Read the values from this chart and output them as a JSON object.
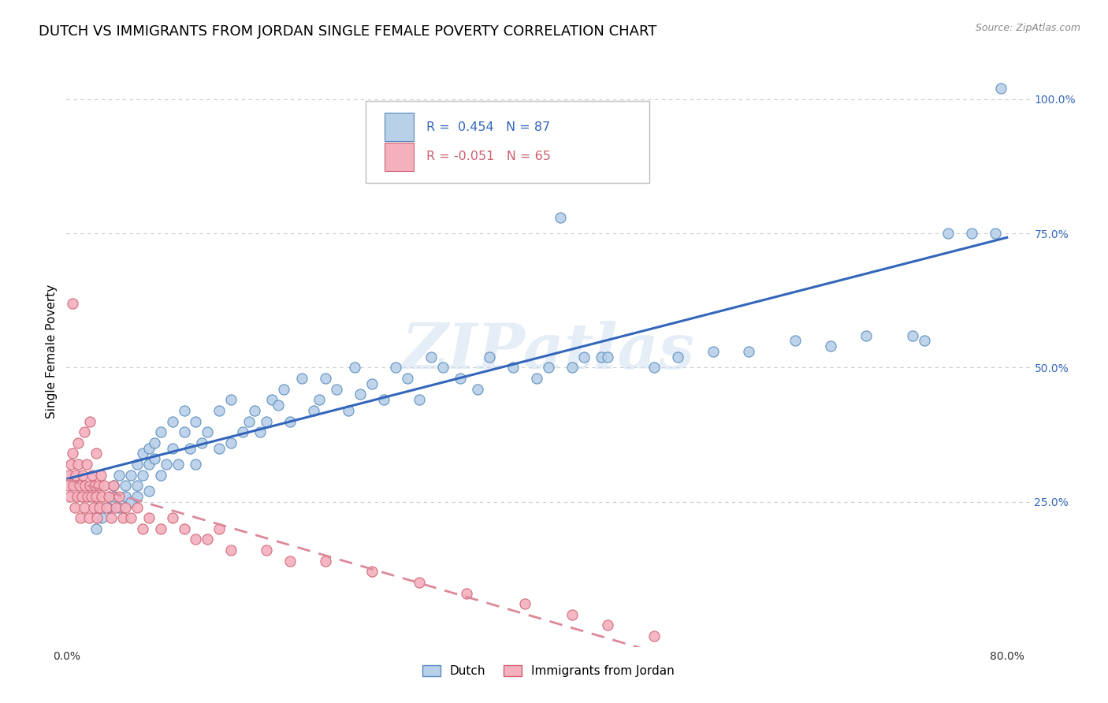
{
  "title": "DUTCH VS IMMIGRANTS FROM JORDAN SINGLE FEMALE POVERTY CORRELATION CHART",
  "source": "Source: ZipAtlas.com",
  "ylabel": "Single Female Poverty",
  "xlim": [
    0.0,
    0.82
  ],
  "ylim": [
    -0.02,
    1.08
  ],
  "xticks": [
    0.0,
    0.2,
    0.4,
    0.6,
    0.8
  ],
  "xticklabels": [
    "0.0%",
    "",
    "",
    "",
    "80.0%"
  ],
  "yticks": [
    0.0,
    0.25,
    0.5,
    0.75,
    1.0
  ],
  "yticklabels": [
    "",
    "25.0%",
    "50.0%",
    "75.0%",
    "100.0%"
  ],
  "dutch_R": 0.454,
  "dutch_N": 87,
  "jordan_R": -0.051,
  "jordan_N": 65,
  "dutch_color": "#b8d0e8",
  "dutch_edge_color": "#5588bb",
  "jordan_color": "#f5b0be",
  "jordan_edge_color": "#cc6070",
  "dutch_trend_color": "#3366bb",
  "jordan_trend_color": "#dd8898",
  "background_color": "#ffffff",
  "watermark": "ZIPatlas",
  "grid_color": "#cccccc",
  "title_fontsize": 13,
  "axis_label_fontsize": 11,
  "tick_fontsize": 10,
  "legend_fontsize": 11,
  "dutch_x": [
    0.025,
    0.03,
    0.035,
    0.04,
    0.04,
    0.045,
    0.045,
    0.05,
    0.05,
    0.055,
    0.055,
    0.06,
    0.06,
    0.06,
    0.065,
    0.065,
    0.07,
    0.07,
    0.07,
    0.075,
    0.075,
    0.08,
    0.08,
    0.085,
    0.09,
    0.09,
    0.095,
    0.1,
    0.1,
    0.105,
    0.11,
    0.11,
    0.115,
    0.12,
    0.13,
    0.13,
    0.14,
    0.14,
    0.15,
    0.155,
    0.16,
    0.165,
    0.17,
    0.175,
    0.18,
    0.185,
    0.19,
    0.2,
    0.21,
    0.215,
    0.22,
    0.23,
    0.24,
    0.245,
    0.25,
    0.26,
    0.27,
    0.28,
    0.29,
    0.3,
    0.31,
    0.32,
    0.335,
    0.35,
    0.36,
    0.38,
    0.4,
    0.41,
    0.43,
    0.44,
    0.455,
    0.46,
    0.5,
    0.52,
    0.55,
    0.58,
    0.62,
    0.65,
    0.68,
    0.72,
    0.73,
    0.75,
    0.77,
    0.79,
    0.795,
    0.345,
    0.42
  ],
  "dutch_y": [
    0.2,
    0.22,
    0.24,
    0.26,
    0.28,
    0.24,
    0.3,
    0.26,
    0.28,
    0.3,
    0.25,
    0.28,
    0.32,
    0.26,
    0.3,
    0.34,
    0.35,
    0.32,
    0.27,
    0.33,
    0.36,
    0.3,
    0.38,
    0.32,
    0.35,
    0.4,
    0.32,
    0.38,
    0.42,
    0.35,
    0.32,
    0.4,
    0.36,
    0.38,
    0.35,
    0.42,
    0.36,
    0.44,
    0.38,
    0.4,
    0.42,
    0.38,
    0.4,
    0.44,
    0.43,
    0.46,
    0.4,
    0.48,
    0.42,
    0.44,
    0.48,
    0.46,
    0.42,
    0.5,
    0.45,
    0.47,
    0.44,
    0.5,
    0.48,
    0.44,
    0.52,
    0.5,
    0.48,
    0.46,
    0.52,
    0.5,
    0.48,
    0.5,
    0.5,
    0.52,
    0.52,
    0.52,
    0.5,
    0.52,
    0.53,
    0.53,
    0.55,
    0.54,
    0.56,
    0.56,
    0.55,
    0.75,
    0.75,
    0.75,
    1.02,
    0.88,
    0.78
  ],
  "jordan_x": [
    0.001,
    0.002,
    0.003,
    0.004,
    0.005,
    0.006,
    0.007,
    0.008,
    0.009,
    0.01,
    0.011,
    0.012,
    0.013,
    0.014,
    0.015,
    0.016,
    0.017,
    0.018,
    0.019,
    0.02,
    0.021,
    0.022,
    0.023,
    0.024,
    0.025,
    0.026,
    0.027,
    0.028,
    0.029,
    0.03,
    0.032,
    0.034,
    0.036,
    0.038,
    0.04,
    0.042,
    0.045,
    0.048,
    0.05,
    0.055,
    0.06,
    0.065,
    0.07,
    0.08,
    0.09,
    0.1,
    0.11,
    0.12,
    0.13,
    0.14,
    0.17,
    0.19,
    0.22,
    0.26,
    0.3,
    0.34,
    0.39,
    0.43,
    0.46,
    0.5,
    0.005,
    0.01,
    0.015,
    0.02,
    0.025
  ],
  "jordan_y": [
    0.28,
    0.3,
    0.26,
    0.32,
    0.34,
    0.28,
    0.24,
    0.3,
    0.26,
    0.32,
    0.28,
    0.22,
    0.26,
    0.3,
    0.24,
    0.28,
    0.32,
    0.26,
    0.22,
    0.28,
    0.26,
    0.3,
    0.24,
    0.28,
    0.26,
    0.22,
    0.28,
    0.24,
    0.3,
    0.26,
    0.28,
    0.24,
    0.26,
    0.22,
    0.28,
    0.24,
    0.26,
    0.22,
    0.24,
    0.22,
    0.24,
    0.2,
    0.22,
    0.2,
    0.22,
    0.2,
    0.18,
    0.18,
    0.2,
    0.16,
    0.16,
    0.14,
    0.14,
    0.12,
    0.1,
    0.08,
    0.06,
    0.04,
    0.02,
    0.0,
    0.62,
    0.36,
    0.38,
    0.4,
    0.34
  ]
}
